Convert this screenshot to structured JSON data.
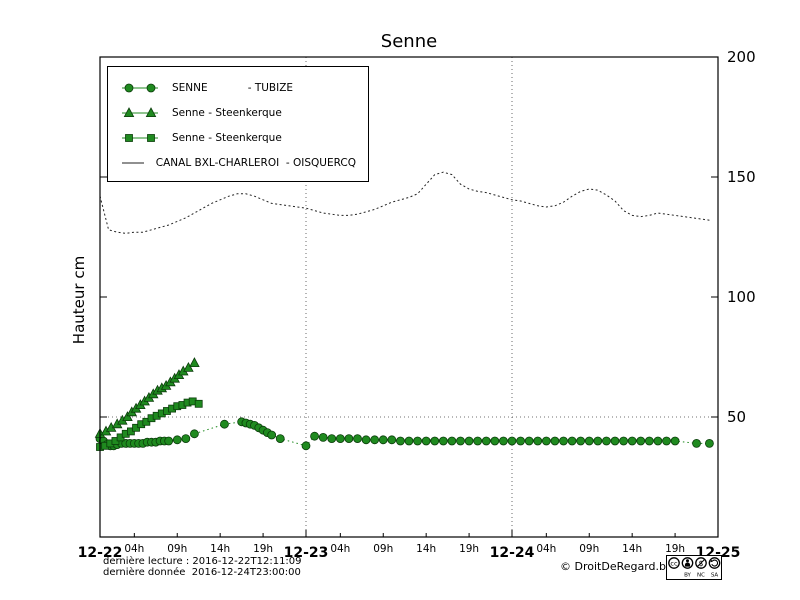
{
  "chart": {
    "title": "Senne",
    "ylabel": "Hauteur cm",
    "legend": [
      {
        "label": "SENNE            - TUBIZE",
        "marker": "circle"
      },
      {
        "label": "Senne - Steenkerque",
        "marker": "triangle"
      },
      {
        "label": "Senne - Steenkerque",
        "marker": "square"
      },
      {
        "label": "CANAL BXL-CHARLEROI  - OISQUERCQ",
        "marker": "line"
      }
    ],
    "footer": {
      "line1": "dernière lecture : 2016-12-22T12:11:09",
      "line2": "dernière donnée  2016-12-24T23:00:00",
      "copyright": "© DroitDeRegard.be",
      "cc_labels": {
        "by": "BY",
        "nc": "NC",
        "sa": "SA"
      }
    },
    "colors": {
      "green": "#1f8a1f",
      "green_edge": "#0b3d0b",
      "canal": "#222222"
    }
  },
  "chart_data": {
    "type": "line",
    "title": "Senne",
    "xlabel": "",
    "ylabel": "Hauteur cm",
    "ylim": [
      0,
      200
    ],
    "xlim": [
      0,
      72
    ],
    "x_unit": "hours since 2016-12-22 00:00",
    "grid": {
      "v_hours": [
        24,
        48
      ],
      "h_values": [
        50
      ]
    },
    "y_ticks": [
      {
        "value": 50,
        "label": "50"
      },
      {
        "value": 100,
        "label": "100"
      },
      {
        "value": 150,
        "label": "150"
      },
      {
        "value": 200,
        "label": "200"
      }
    ],
    "x_major_ticks": [
      {
        "hour": 0,
        "label": "12-22"
      },
      {
        "hour": 24,
        "label": "12-23"
      },
      {
        "hour": 48,
        "label": "12-24"
      },
      {
        "hour": 72,
        "label": "12-25"
      }
    ],
    "x_minor_ticks": [
      {
        "hour": 4,
        "label": "04h"
      },
      {
        "hour": 9,
        "label": "09h"
      },
      {
        "hour": 14,
        "label": "14h"
      },
      {
        "hour": 19,
        "label": "19h"
      },
      {
        "hour": 28,
        "label": "04h"
      },
      {
        "hour": 33,
        "label": "09h"
      },
      {
        "hour": 38,
        "label": "14h"
      },
      {
        "hour": 43,
        "label": "19h"
      },
      {
        "hour": 52,
        "label": "04h"
      },
      {
        "hour": 57,
        "label": "09h"
      },
      {
        "hour": 62,
        "label": "14h"
      },
      {
        "hour": 67,
        "label": "19h"
      }
    ],
    "series": [
      {
        "name": "SENNE - TUBIZE",
        "marker": "circle",
        "line": "dotted",
        "color": "#1f8a1f",
        "edge": "#0b3d0b",
        "points": [
          [
            0,
            41
          ],
          [
            0.4,
            40
          ],
          [
            0.8,
            38.5
          ],
          [
            1.2,
            38
          ],
          [
            1.6,
            38
          ],
          [
            2,
            38.5
          ],
          [
            2.5,
            39
          ],
          [
            3,
            39
          ],
          [
            3.5,
            39
          ],
          [
            4,
            39
          ],
          [
            4.5,
            39
          ],
          [
            5,
            39
          ],
          [
            5.5,
            39.5
          ],
          [
            6,
            39.5
          ],
          [
            6.5,
            39.5
          ],
          [
            7,
            40
          ],
          [
            7.5,
            40
          ],
          [
            8,
            40
          ],
          [
            9,
            40.5
          ],
          [
            10,
            41
          ],
          [
            11,
            43
          ],
          [
            14.5,
            47
          ],
          [
            16.5,
            48
          ],
          [
            17,
            47.5
          ],
          [
            17.5,
            47
          ],
          [
            18,
            46.5
          ],
          [
            18.5,
            45.5
          ],
          [
            19,
            44.5
          ],
          [
            19.5,
            43.5
          ],
          [
            20,
            42.5
          ],
          [
            21,
            41
          ],
          [
            24,
            38
          ],
          [
            25,
            42
          ],
          [
            26,
            41.5
          ],
          [
            27,
            41
          ],
          [
            28,
            41
          ],
          [
            29,
            41
          ],
          [
            30,
            41
          ],
          [
            31,
            40.5
          ],
          [
            32,
            40.5
          ],
          [
            33,
            40.5
          ],
          [
            34,
            40.5
          ],
          [
            35,
            40
          ],
          [
            36,
            40
          ],
          [
            37,
            40
          ],
          [
            38,
            40
          ],
          [
            39,
            40
          ],
          [
            40,
            40
          ],
          [
            41,
            40
          ],
          [
            42,
            40
          ],
          [
            43,
            40
          ],
          [
            44,
            40
          ],
          [
            45,
            40
          ],
          [
            46,
            40
          ],
          [
            47,
            40
          ],
          [
            48,
            40
          ],
          [
            49,
            40
          ],
          [
            50,
            40
          ],
          [
            51,
            40
          ],
          [
            52,
            40
          ],
          [
            53,
            40
          ],
          [
            54,
            40
          ],
          [
            55,
            40
          ],
          [
            56,
            40
          ],
          [
            57,
            40
          ],
          [
            58,
            40
          ],
          [
            59,
            40
          ],
          [
            60,
            40
          ],
          [
            61,
            40
          ],
          [
            62,
            40
          ],
          [
            63,
            40
          ],
          [
            64,
            40
          ],
          [
            65,
            40
          ],
          [
            66,
            40
          ],
          [
            67,
            40
          ],
          [
            69.5,
            39
          ],
          [
            71,
            39
          ]
        ]
      },
      {
        "name": "Senne - Steenkerque",
        "marker": "triangle",
        "line": "solid",
        "color": "#1f8a1f",
        "edge": "#0b3d0b",
        "points": [
          [
            0,
            43
          ],
          [
            0.7,
            44
          ],
          [
            1.3,
            45.5
          ],
          [
            2,
            47
          ],
          [
            2.6,
            48.5
          ],
          [
            3.2,
            50
          ],
          [
            3.7,
            52
          ],
          [
            4.2,
            53.5
          ],
          [
            4.7,
            55
          ],
          [
            5.2,
            56.5
          ],
          [
            5.7,
            58
          ],
          [
            6.2,
            59.5
          ],
          [
            6.7,
            61
          ],
          [
            7.2,
            62
          ],
          [
            7.7,
            63
          ],
          [
            8.2,
            64.5
          ],
          [
            8.7,
            66
          ],
          [
            9.2,
            67.5
          ],
          [
            9.7,
            69
          ],
          [
            10.3,
            70.5
          ],
          [
            11,
            72.5
          ]
        ]
      },
      {
        "name": "Senne - Steenkerque",
        "marker": "square",
        "line": "solid",
        "color": "#1f8a1f",
        "edge": "#0b3d0b",
        "points": [
          [
            0,
            37.5
          ],
          [
            0.6,
            38
          ],
          [
            1.2,
            39
          ],
          [
            1.8,
            40
          ],
          [
            2.4,
            41.5
          ],
          [
            3,
            43
          ],
          [
            3.6,
            44
          ],
          [
            4.2,
            45.5
          ],
          [
            4.8,
            47
          ],
          [
            5.4,
            48
          ],
          [
            6,
            49.5
          ],
          [
            6.6,
            50.5
          ],
          [
            7.2,
            51.5
          ],
          [
            7.8,
            52.5
          ],
          [
            8.4,
            53.5
          ],
          [
            9,
            54.5
          ],
          [
            9.6,
            55
          ],
          [
            10.2,
            56
          ],
          [
            10.8,
            56.5
          ],
          [
            11.5,
            55.5
          ]
        ]
      },
      {
        "name": "CANAL BXL-CHARLEROI - OISQUERCQ",
        "marker": "none",
        "line": "dashed",
        "color": "#222222",
        "edge": "#222222",
        "points": [
          [
            0,
            142
          ],
          [
            1,
            128
          ],
          [
            2,
            127
          ],
          [
            3,
            126.5
          ],
          [
            4,
            127
          ],
          [
            5,
            127
          ],
          [
            6,
            128
          ],
          [
            7,
            129
          ],
          [
            8,
            130
          ],
          [
            9,
            131.5
          ],
          [
            10,
            133
          ],
          [
            11,
            135
          ],
          [
            12,
            137
          ],
          [
            13,
            139
          ],
          [
            14,
            140.5
          ],
          [
            15,
            142
          ],
          [
            16,
            143
          ],
          [
            17,
            143
          ],
          [
            18,
            142
          ],
          [
            19,
            140.5
          ],
          [
            20,
            139
          ],
          [
            21,
            138.5
          ],
          [
            22,
            138
          ],
          [
            23,
            137.5
          ],
          [
            24,
            137
          ],
          [
            25,
            136
          ],
          [
            26,
            135
          ],
          [
            27,
            134.5
          ],
          [
            28,
            134
          ],
          [
            29,
            134
          ],
          [
            30,
            134.5
          ],
          [
            31,
            135.5
          ],
          [
            32,
            136.5
          ],
          [
            33,
            138
          ],
          [
            34,
            139.5
          ],
          [
            35,
            140.5
          ],
          [
            36,
            141.5
          ],
          [
            37,
            143
          ],
          [
            38,
            147
          ],
          [
            39,
            151
          ],
          [
            40,
            152
          ],
          [
            41,
            151
          ],
          [
            42,
            147
          ],
          [
            43,
            145
          ],
          [
            44,
            144
          ],
          [
            45,
            143.5
          ],
          [
            46,
            142.5
          ],
          [
            47,
            141.5
          ],
          [
            48,
            140.5
          ],
          [
            49,
            140
          ],
          [
            50,
            139
          ],
          [
            51,
            138
          ],
          [
            52,
            137.5
          ],
          [
            53,
            138
          ],
          [
            54,
            139.5
          ],
          [
            55,
            142
          ],
          [
            56,
            144
          ],
          [
            57,
            145
          ],
          [
            58,
            144.5
          ],
          [
            59,
            142.5
          ],
          [
            60,
            140
          ],
          [
            61,
            136
          ],
          [
            62,
            134
          ],
          [
            63,
            133.5
          ],
          [
            64,
            134
          ],
          [
            65,
            135
          ],
          [
            66,
            134.5
          ],
          [
            67,
            134
          ],
          [
            68,
            133.5
          ],
          [
            69,
            133
          ],
          [
            70,
            132.5
          ],
          [
            71,
            132
          ]
        ]
      }
    ]
  }
}
